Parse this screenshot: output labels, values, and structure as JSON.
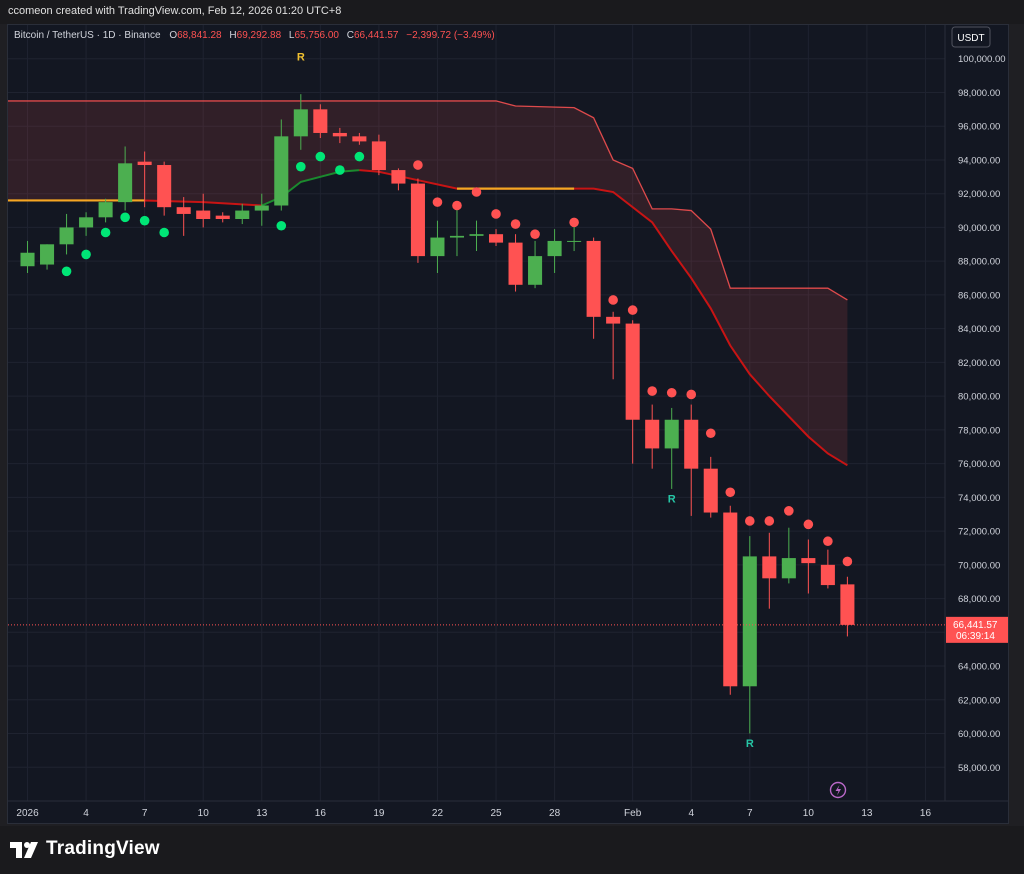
{
  "header": {
    "credit": "ccomeon created with TradingView.com, Feb 12, 2026 01:20 UTC+8"
  },
  "legend": {
    "symbol": "Bitcoin / TetherUS · 1D · Binance",
    "open_label": "O",
    "open": "68,841.28",
    "high_label": "H",
    "high": "69,292.88",
    "low_label": "L",
    "low": "65,756.00",
    "close_label": "C",
    "close": "66,441.57",
    "change": "−2,399.72 (−3.49%)"
  },
  "currency_button": "USDT",
  "footer": {
    "brand": "TradingView"
  },
  "colors": {
    "up": "#4caf50",
    "down": "#ff5252",
    "bg": "#131722",
    "grid": "#1f2330",
    "axis_text": "#d1d4dc"
  },
  "chart_data": {
    "type": "candlestick",
    "symbol": "Bitcoin / TetherUS",
    "interval": "1D",
    "exchange": "Binance",
    "ylim": [
      56000,
      102000
    ],
    "yticks": [
      58000,
      60000,
      62000,
      64000,
      66000,
      68000,
      70000,
      72000,
      74000,
      76000,
      78000,
      80000,
      82000,
      84000,
      86000,
      88000,
      90000,
      92000,
      94000,
      96000,
      98000,
      100000
    ],
    "ytick_labels": [
      "58,000.00",
      "60,000.00",
      "62,000.00",
      "64,000.00",
      "66,000.00",
      "68,000.00",
      "70,000.00",
      "72,000.00",
      "74,000.00",
      "76,000.00",
      "78,000.00",
      "80,000.00",
      "82,000.00",
      "84,000.00",
      "86,000.00",
      "88,000.00",
      "90,000.00",
      "92,000.00",
      "94,000.00",
      "96,000.00",
      "98,000.00",
      "100,000.00"
    ],
    "x_domain": [
      "2025-12-31",
      "2026-02-17"
    ],
    "xticks": [
      {
        "date": "2026-01-01",
        "label": "2026"
      },
      {
        "date": "2026-01-04",
        "label": "4"
      },
      {
        "date": "2026-01-07",
        "label": "7"
      },
      {
        "date": "2026-01-10",
        "label": "10"
      },
      {
        "date": "2026-01-13",
        "label": "13"
      },
      {
        "date": "2026-01-16",
        "label": "16"
      },
      {
        "date": "2026-01-19",
        "label": "19"
      },
      {
        "date": "2026-01-22",
        "label": "22"
      },
      {
        "date": "2026-01-25",
        "label": "25"
      },
      {
        "date": "2026-01-28",
        "label": "28"
      },
      {
        "date": "2026-02-01",
        "label": "Feb"
      },
      {
        "date": "2026-02-04",
        "label": "4"
      },
      {
        "date": "2026-02-07",
        "label": "7"
      },
      {
        "date": "2026-02-10",
        "label": "10"
      },
      {
        "date": "2026-02-13",
        "label": "13"
      },
      {
        "date": "2026-02-16",
        "label": "16"
      }
    ],
    "candles": [
      {
        "date": "2026-01-01",
        "o": 87700,
        "h": 89200,
        "l": 87300,
        "c": 88500
      },
      {
        "date": "2026-01-02",
        "o": 87800,
        "h": 89000,
        "l": 87500,
        "c": 89000
      },
      {
        "date": "2026-01-03",
        "o": 89000,
        "h": 90800,
        "l": 88400,
        "c": 90000
      },
      {
        "date": "2026-01-04",
        "o": 90000,
        "h": 90900,
        "l": 89500,
        "c": 90600
      },
      {
        "date": "2026-01-05",
        "o": 90600,
        "h": 91700,
        "l": 90300,
        "c": 91500
      },
      {
        "date": "2026-01-06",
        "o": 91500,
        "h": 94800,
        "l": 91000,
        "c": 93800
      },
      {
        "date": "2026-01-07",
        "o": 93900,
        "h": 94500,
        "l": 91200,
        "c": 93700
      },
      {
        "date": "2026-01-08",
        "o": 93700,
        "h": 93900,
        "l": 90700,
        "c": 91200
      },
      {
        "date": "2026-01-09",
        "o": 91200,
        "h": 91800,
        "l": 89500,
        "c": 90800
      },
      {
        "date": "2026-01-10",
        "o": 91000,
        "h": 92000,
        "l": 90000,
        "c": 90500
      },
      {
        "date": "2026-01-11",
        "o": 90700,
        "h": 90900,
        "l": 90300,
        "c": 90500
      },
      {
        "date": "2026-01-12",
        "o": 90500,
        "h": 91400,
        "l": 90200,
        "c": 91000
      },
      {
        "date": "2026-01-13",
        "o": 91000,
        "h": 92000,
        "l": 90100,
        "c": 91300
      },
      {
        "date": "2026-01-14",
        "o": 91300,
        "h": 96400,
        "l": 91000,
        "c": 95400
      },
      {
        "date": "2026-01-15",
        "o": 95400,
        "h": 97900,
        "l": 94600,
        "c": 97000
      },
      {
        "date": "2026-01-16",
        "o": 97000,
        "h": 97300,
        "l": 95300,
        "c": 95600
      },
      {
        "date": "2026-01-17",
        "o": 95600,
        "h": 95900,
        "l": 95000,
        "c": 95400
      },
      {
        "date": "2026-01-18",
        "o": 95400,
        "h": 95600,
        "l": 94900,
        "c": 95100
      },
      {
        "date": "2026-01-19",
        "o": 95100,
        "h": 95500,
        "l": 93100,
        "c": 93400
      },
      {
        "date": "2026-01-20",
        "o": 93400,
        "h": 93500,
        "l": 92200,
        "c": 92600
      },
      {
        "date": "2026-01-21",
        "o": 92600,
        "h": 92900,
        "l": 87900,
        "c": 88300
      },
      {
        "date": "2026-01-22",
        "o": 88300,
        "h": 90400,
        "l": 87300,
        "c": 89400
      },
      {
        "date": "2026-01-23",
        "o": 89400,
        "h": 91100,
        "l": 88300,
        "c": 89500
      },
      {
        "date": "2026-01-24",
        "o": 89500,
        "h": 90400,
        "l": 88600,
        "c": 89600
      },
      {
        "date": "2026-01-25",
        "o": 89600,
        "h": 89900,
        "l": 88900,
        "c": 89100
      },
      {
        "date": "2026-01-26",
        "o": 89100,
        "h": 89600,
        "l": 86200,
        "c": 86600
      },
      {
        "date": "2026-01-27",
        "o": 86600,
        "h": 89200,
        "l": 86400,
        "c": 88300
      },
      {
        "date": "2026-01-28",
        "o": 88300,
        "h": 89900,
        "l": 87300,
        "c": 89200
      },
      {
        "date": "2026-01-29",
        "o": 89200,
        "h": 90500,
        "l": 88600,
        "c": 89200
      },
      {
        "date": "2026-01-30",
        "o": 89200,
        "h": 89400,
        "l": 83400,
        "c": 84700
      },
      {
        "date": "2026-01-31",
        "o": 84700,
        "h": 85000,
        "l": 81000,
        "c": 84300
      },
      {
        "date": "2026-02-01",
        "o": 84300,
        "h": 84500,
        "l": 76000,
        "c": 78600
      },
      {
        "date": "2026-02-02",
        "o": 78600,
        "h": 79500,
        "l": 75700,
        "c": 76900
      },
      {
        "date": "2026-02-03",
        "o": 76900,
        "h": 79300,
        "l": 74500,
        "c": 78600
      },
      {
        "date": "2026-02-04",
        "o": 78600,
        "h": 79500,
        "l": 72900,
        "c": 75700
      },
      {
        "date": "2026-02-05",
        "o": 75700,
        "h": 76400,
        "l": 72800,
        "c": 73100
      },
      {
        "date": "2026-02-06",
        "o": 73100,
        "h": 73500,
        "l": 62300,
        "c": 62800
      },
      {
        "date": "2026-02-07",
        "o": 62800,
        "h": 71700,
        "l": 60000,
        "c": 70500
      },
      {
        "date": "2026-02-08",
        "o": 70500,
        "h": 71900,
        "l": 67400,
        "c": 69200
      },
      {
        "date": "2026-02-09",
        "o": 69200,
        "h": 72200,
        "l": 68900,
        "c": 70400
      },
      {
        "date": "2026-02-10",
        "o": 70400,
        "h": 71500,
        "l": 68300,
        "c": 70100
      },
      {
        "date": "2026-02-11",
        "o": 70000,
        "h": 70900,
        "l": 68600,
        "c": 68800
      },
      {
        "date": "2026-02-12",
        "o": 68841.28,
        "h": 69292.88,
        "l": 65756.0,
        "c": 66441.57
      }
    ],
    "dots": [
      {
        "date": "2026-01-03",
        "v": 87400,
        "dir": "up"
      },
      {
        "date": "2026-01-04",
        "v": 88400,
        "dir": "up"
      },
      {
        "date": "2026-01-05",
        "v": 89700,
        "dir": "up"
      },
      {
        "date": "2026-01-06",
        "v": 90600,
        "dir": "up"
      },
      {
        "date": "2026-01-07",
        "v": 90400,
        "dir": "up"
      },
      {
        "date": "2026-01-08",
        "v": 89700,
        "dir": "up"
      },
      {
        "date": "2026-01-14",
        "v": 90100,
        "dir": "up"
      },
      {
        "date": "2026-01-15",
        "v": 93600,
        "dir": "up"
      },
      {
        "date": "2026-01-16",
        "v": 94200,
        "dir": "up"
      },
      {
        "date": "2026-01-17",
        "v": 93400,
        "dir": "up"
      },
      {
        "date": "2026-01-18",
        "v": 94200,
        "dir": "up"
      },
      {
        "date": "2026-01-21",
        "v": 93700,
        "dir": "down"
      },
      {
        "date": "2026-01-22",
        "v": 91500,
        "dir": "down"
      },
      {
        "date": "2026-01-23",
        "v": 91300,
        "dir": "down"
      },
      {
        "date": "2026-01-24",
        "v": 92100,
        "dir": "down"
      },
      {
        "date": "2026-01-25",
        "v": 90800,
        "dir": "down"
      },
      {
        "date": "2026-01-26",
        "v": 90200,
        "dir": "down"
      },
      {
        "date": "2026-01-27",
        "v": 89600,
        "dir": "down"
      },
      {
        "date": "2026-01-29",
        "v": 90300,
        "dir": "down"
      },
      {
        "date": "2026-01-31",
        "v": 85700,
        "dir": "down"
      },
      {
        "date": "2026-02-01",
        "v": 85100,
        "dir": "down"
      },
      {
        "date": "2026-02-02",
        "v": 80300,
        "dir": "down"
      },
      {
        "date": "2026-02-03",
        "v": 80200,
        "dir": "down"
      },
      {
        "date": "2026-02-04",
        "v": 80100,
        "dir": "down"
      },
      {
        "date": "2026-02-05",
        "v": 77800,
        "dir": "down"
      },
      {
        "date": "2026-02-06",
        "v": 74300,
        "dir": "down"
      },
      {
        "date": "2026-02-07",
        "v": 72600,
        "dir": "down"
      },
      {
        "date": "2026-02-08",
        "v": 72600,
        "dir": "down"
      },
      {
        "date": "2026-02-09",
        "v": 73200,
        "dir": "down"
      },
      {
        "date": "2026-02-10",
        "v": 72400,
        "dir": "down"
      },
      {
        "date": "2026-02-11",
        "v": 71400,
        "dir": "down"
      },
      {
        "date": "2026-02-12",
        "v": 70200,
        "dir": "down"
      }
    ],
    "upper_band": [
      {
        "date": "2025-12-31",
        "v": 97500
      },
      {
        "date": "2026-01-25",
        "v": 97500
      },
      {
        "date": "2026-01-26",
        "v": 97200
      },
      {
        "date": "2026-01-29",
        "v": 97100
      },
      {
        "date": "2026-01-30",
        "v": 96500
      },
      {
        "date": "2026-01-31",
        "v": 94000
      },
      {
        "date": "2026-02-01",
        "v": 93500
      },
      {
        "date": "2026-02-02",
        "v": 91100
      },
      {
        "date": "2026-02-03",
        "v": 91100
      },
      {
        "date": "2026-02-04",
        "v": 91000
      },
      {
        "date": "2026-02-05",
        "v": 89900
      },
      {
        "date": "2026-02-06",
        "v": 86400
      },
      {
        "date": "2026-02-11",
        "v": 86400
      },
      {
        "date": "2026-02-12",
        "v": 85700
      }
    ],
    "basis_line": [
      {
        "date": "2026-01-07",
        "v": 91600
      },
      {
        "date": "2026-01-10",
        "v": 91500
      },
      {
        "date": "2026-01-13",
        "v": 91300
      },
      {
        "date": "2026-01-14",
        "v": 91800
      },
      {
        "date": "2026-01-15",
        "v": 92700
      },
      {
        "date": "2026-01-16",
        "v": 93000
      },
      {
        "date": "2026-01-17",
        "v": 93300
      },
      {
        "date": "2026-01-18",
        "v": 93400
      },
      {
        "date": "2026-01-19",
        "v": 93300
      },
      {
        "date": "2026-01-21",
        "v": 92800
      },
      {
        "date": "2026-01-23",
        "v": 92300
      },
      {
        "date": "2026-01-25",
        "v": 92300
      },
      {
        "date": "2026-01-30",
        "v": 92300
      },
      {
        "date": "2026-01-31",
        "v": 92100
      },
      {
        "date": "2026-02-02",
        "v": 90300
      },
      {
        "date": "2026-02-03",
        "v": 88600
      },
      {
        "date": "2026-02-04",
        "v": 87000
      },
      {
        "date": "2026-02-05",
        "v": 85200
      },
      {
        "date": "2026-02-06",
        "v": 83000
      },
      {
        "date": "2026-02-07",
        "v": 81300
      },
      {
        "date": "2026-02-08",
        "v": 80000
      },
      {
        "date": "2026-02-09",
        "v": 78800
      },
      {
        "date": "2026-02-10",
        "v": 77600
      },
      {
        "date": "2026-02-11",
        "v": 76600
      },
      {
        "date": "2026-02-12",
        "v": 75900
      }
    ],
    "orange_segments": [
      [
        {
          "date": "2025-12-31",
          "v": 91600
        },
        {
          "date": "2026-01-07",
          "v": 91600
        }
      ],
      [
        {
          "date": "2026-01-23",
          "v": 92300
        },
        {
          "date": "2026-01-29",
          "v": 92300
        }
      ]
    ],
    "markers": [
      {
        "date": "2026-01-15",
        "v": 99900,
        "label": "R",
        "color": "#f0c030"
      },
      {
        "date": "2026-02-03",
        "v": 73700,
        "label": "R",
        "color": "#26c6a6"
      },
      {
        "date": "2026-02-07",
        "v": 59200,
        "label": "R",
        "color": "#26c6a6"
      }
    ],
    "last_price": {
      "value": 66441.57,
      "label": "66,441.57",
      "countdown": "06:39:14"
    }
  }
}
